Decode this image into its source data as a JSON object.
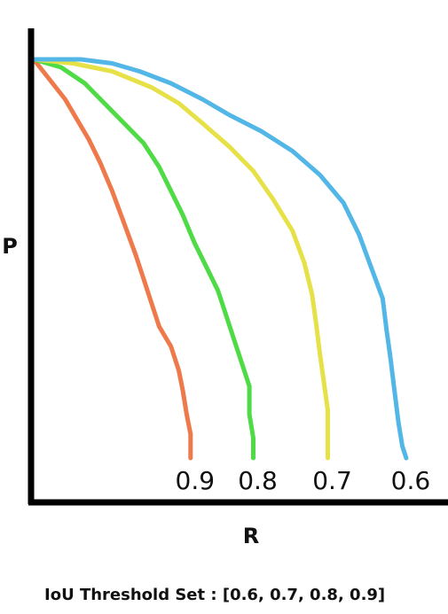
{
  "chart_data": {
    "type": "line",
    "title": "",
    "xlabel": "R",
    "ylabel": "P",
    "xlim": [
      0,
      1
    ],
    "ylim": [
      0,
      1
    ],
    "grid": false,
    "legend": "none",
    "caption": "IoU Threshold Set : [0.6, 0.7, 0.8, 0.9]",
    "series": [
      {
        "name": "0.9",
        "color": "#ee7a4c",
        "x": [
          0.0,
          0.04,
          0.08,
          0.11,
          0.14,
          0.17,
          0.2,
          0.23,
          0.26,
          0.28,
          0.3,
          0.32,
          0.35,
          0.37,
          0.38,
          0.39,
          0.4,
          0.4
        ],
        "y": [
          1.0,
          0.95,
          0.9,
          0.85,
          0.8,
          0.74,
          0.67,
          0.59,
          0.51,
          0.45,
          0.39,
          0.33,
          0.28,
          0.22,
          0.17,
          0.11,
          0.06,
          0.0
        ]
      },
      {
        "name": "0.8",
        "color": "#4fdb45",
        "x": [
          0.0,
          0.07,
          0.13,
          0.18,
          0.23,
          0.28,
          0.32,
          0.35,
          0.38,
          0.41,
          0.44,
          0.47,
          0.49,
          0.51,
          0.53,
          0.55,
          0.55,
          0.56,
          0.56
        ],
        "y": [
          1.0,
          0.98,
          0.94,
          0.89,
          0.84,
          0.79,
          0.73,
          0.67,
          0.61,
          0.54,
          0.48,
          0.42,
          0.36,
          0.3,
          0.24,
          0.18,
          0.11,
          0.05,
          0.0
        ]
      },
      {
        "name": "0.7",
        "color": "#e7e148",
        "x": [
          0.0,
          0.1,
          0.2,
          0.3,
          0.37,
          0.43,
          0.5,
          0.56,
          0.61,
          0.66,
          0.69,
          0.71,
          0.72,
          0.73,
          0.74,
          0.75,
          0.75,
          0.75
        ],
        "y": [
          1.0,
          0.99,
          0.97,
          0.93,
          0.89,
          0.84,
          0.78,
          0.72,
          0.65,
          0.57,
          0.49,
          0.41,
          0.34,
          0.26,
          0.19,
          0.12,
          0.06,
          0.0
        ]
      },
      {
        "name": "0.6",
        "color": "#52b6e6",
        "x": [
          0.0,
          0.12,
          0.2,
          0.27,
          0.35,
          0.43,
          0.5,
          0.58,
          0.66,
          0.73,
          0.79,
          0.83,
          0.86,
          0.89,
          0.9,
          0.91,
          0.92,
          0.93,
          0.94,
          0.95
        ],
        "y": [
          1.0,
          1.0,
          0.99,
          0.97,
          0.94,
          0.9,
          0.86,
          0.82,
          0.77,
          0.71,
          0.64,
          0.56,
          0.48,
          0.4,
          0.32,
          0.25,
          0.17,
          0.09,
          0.03,
          0.0
        ]
      }
    ]
  }
}
